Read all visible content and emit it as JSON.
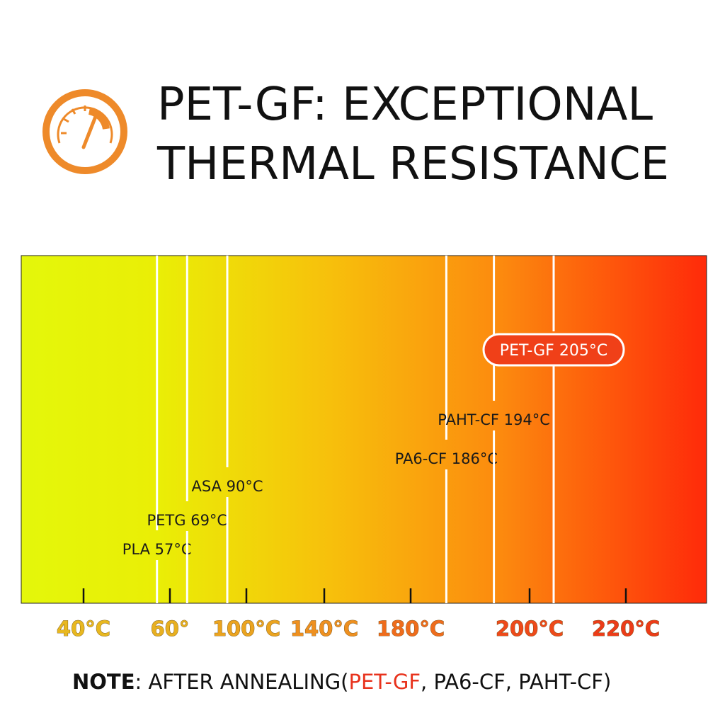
{
  "header": {
    "icon": "gauge-icon",
    "title_line1": "PET-GF: EXCEPTIONAL",
    "title_line2": "THERMAL RESISTANCE"
  },
  "colors": {
    "gradient_start": "#e4f70a",
    "gradient_mid": "#f7b80c",
    "gradient_end": "#ff2a0a",
    "icon_orange": "#ee8a2a",
    "note_highlight": "#e8321c"
  },
  "chart_data": {
    "type": "bar",
    "title": "",
    "xlabel": "",
    "ylabel": "",
    "ticks": [
      "40°C",
      "60°",
      "100°C",
      "140°C",
      "180°C",
      "200°C",
      "220°C"
    ],
    "series": [
      {
        "label": "PLA 57°C",
        "value": 57,
        "highlight": false
      },
      {
        "label": "PETG 69°C",
        "value": 69,
        "highlight": false
      },
      {
        "label": "ASA 90°C",
        "value": 90,
        "highlight": false
      },
      {
        "label": "PA6-CF 186°C",
        "value": 186,
        "highlight": false
      },
      {
        "label": "PAHT-CF 194°C",
        "value": 194,
        "highlight": false
      },
      {
        "label": "PET-GF 205°C",
        "value": 205,
        "highlight": true
      }
    ],
    "background": "horizontal gradient yellow to red",
    "grid": false
  },
  "note": {
    "prefix": "NOTE",
    "text1": ": AFTER ANNEALING(",
    "highlight": "PET-GF",
    "text2": ", PA6-CF, PAHT-CF)"
  }
}
